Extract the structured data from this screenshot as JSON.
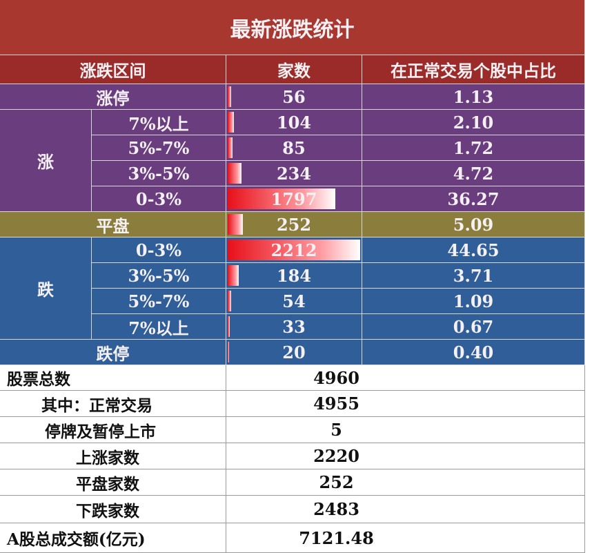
{
  "title": "最新涨跌统计",
  "header": [
    "涨跌区间",
    "家数",
    "在正常交易个股中占比"
  ],
  "up_limit": {
    "label": "涨停",
    "count": 56,
    "pct": "1.13"
  },
  "up": {
    "label": "涨",
    "rows": [
      {
        "range": "7%以上",
        "count": 104,
        "pct": "2.10"
      },
      {
        "range": "5%-7%",
        "count": 85,
        "pct": "1.72"
      },
      {
        "range": "3%-5%",
        "count": 234,
        "pct": "4.72"
      },
      {
        "range": "0-3%",
        "count": 1797,
        "pct": "36.27"
      }
    ]
  },
  "flat": {
    "label": "平盘",
    "count": 252,
    "pct": "5.09"
  },
  "down": {
    "label": "跌",
    "rows": [
      {
        "range": "0-3%",
        "count": 2212,
        "pct": "44.65"
      },
      {
        "range": "3%-5%",
        "count": 184,
        "pct": "3.71"
      },
      {
        "range": "5%-7%",
        "count": 54,
        "pct": "1.09"
      },
      {
        "range": "7%以上",
        "count": 33,
        "pct": "0.67"
      }
    ]
  },
  "down_limit": {
    "label": "跌停",
    "count": 20,
    "pct": "0.40"
  },
  "summary": [
    {
      "label": "股票总数",
      "value": 4960
    },
    {
      "label": "其中：正常交易",
      "value": 4955
    },
    {
      "label": "停牌及暂停上市",
      "value": 5
    },
    {
      "label": "上涨家数",
      "value": 2220
    },
    {
      "label": "平盘家数",
      "value": 252
    },
    {
      "label": "下跌家数",
      "value": 2483
    },
    {
      "label": "A股总成交额(亿元)",
      "value": 7121.48
    }
  ]
}
